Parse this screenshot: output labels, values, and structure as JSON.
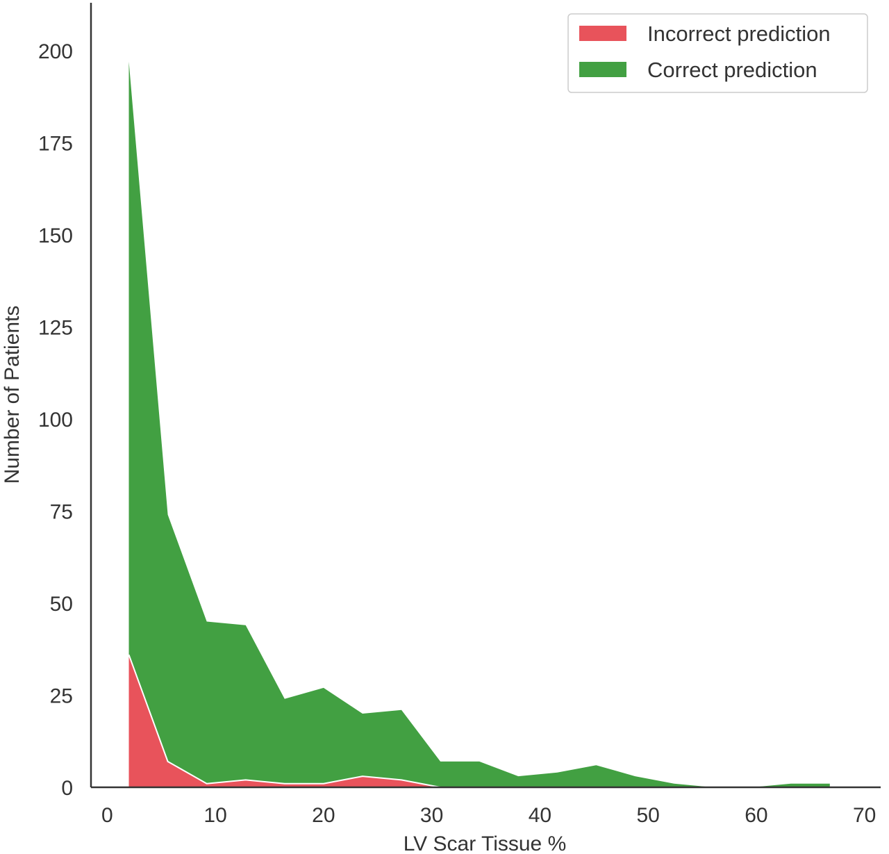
{
  "chart_data": {
    "type": "area",
    "stacked": true,
    "xlabel": "LV Scar Tissue %",
    "ylabel": "Number of Patients",
    "xlim": [
      -1.5,
      71.5
    ],
    "ylim": [
      0,
      213
    ],
    "xticks": [
      0,
      10,
      20,
      30,
      40,
      50,
      60,
      70
    ],
    "yticks": [
      0,
      25,
      50,
      75,
      100,
      125,
      150,
      175,
      200
    ],
    "x": [
      2.0,
      5.6,
      9.2,
      12.8,
      16.4,
      20.0,
      23.6,
      27.2,
      30.8,
      34.4,
      38.0,
      41.6,
      45.2,
      48.8,
      52.4,
      56.0,
      59.6,
      63.2,
      66.8
    ],
    "series": [
      {
        "name": "Incorrect prediction",
        "color": "#e8535b",
        "values": [
          36,
          7,
          1,
          2,
          1,
          1,
          3,
          2,
          0,
          0,
          0,
          0,
          0,
          0,
          0,
          0,
          0,
          0,
          0
        ]
      },
      {
        "name": "Correct prediction",
        "color": "#42a042",
        "values": [
          161,
          67,
          44,
          42,
          23,
          26,
          17,
          19,
          7,
          7,
          3,
          4,
          6,
          3,
          1,
          0,
          0,
          1,
          1
        ]
      }
    ],
    "legend_position": "top-right",
    "grid": false,
    "colors": {
      "axis": "#333333",
      "separator": "#ffffff"
    }
  }
}
